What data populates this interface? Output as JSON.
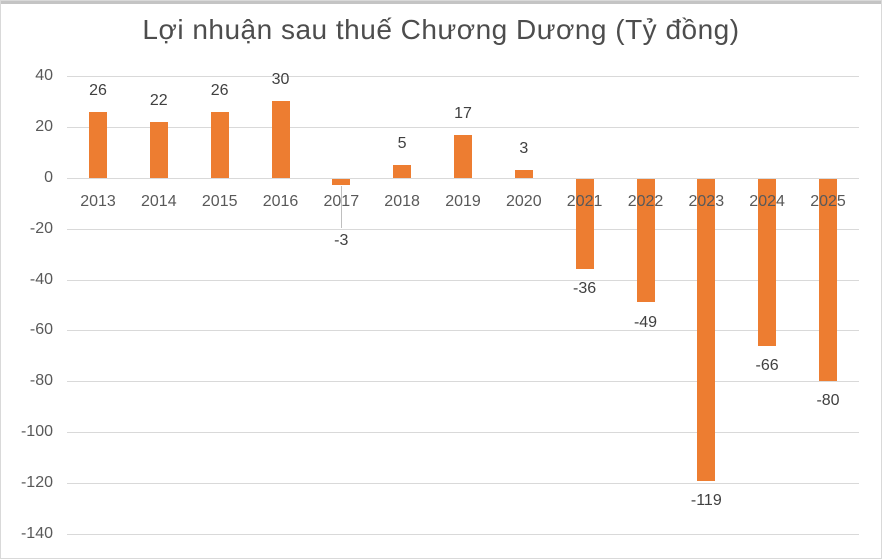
{
  "chart_data": {
    "type": "bar",
    "title": "Lợi nhuận sau thuế Chương Dương (Tỷ đồng)",
    "categories": [
      "2013",
      "2014",
      "2015",
      "2016",
      "2017",
      "2018",
      "2019",
      "2020",
      "2021",
      "2022",
      "2023",
      "2024",
      "2025"
    ],
    "values": [
      26,
      22,
      26,
      30,
      -3,
      5,
      17,
      3,
      -36,
      -49,
      -119,
      -66,
      -80
    ],
    "data_labels": [
      "26",
      "22",
      "26",
      "30",
      "-3",
      "5",
      "17",
      "3",
      "-36",
      "-49",
      "-119",
      "-66",
      "-80"
    ],
    "y_ticks": [
      40,
      20,
      0,
      -20,
      -40,
      -60,
      -80,
      -100,
      -120,
      -140
    ],
    "ylim": [
      -140,
      40
    ],
    "xlabel": "",
    "ylabel": "",
    "grid": true,
    "legend_position": "none",
    "bar_color": "#ED7D31",
    "gridline_color": "#D9D9D9",
    "axis_text_color": "#595959",
    "data_label_color": "#404040",
    "title_color": "#4D4D4D",
    "moved_label_with_leader_line": "2017"
  }
}
